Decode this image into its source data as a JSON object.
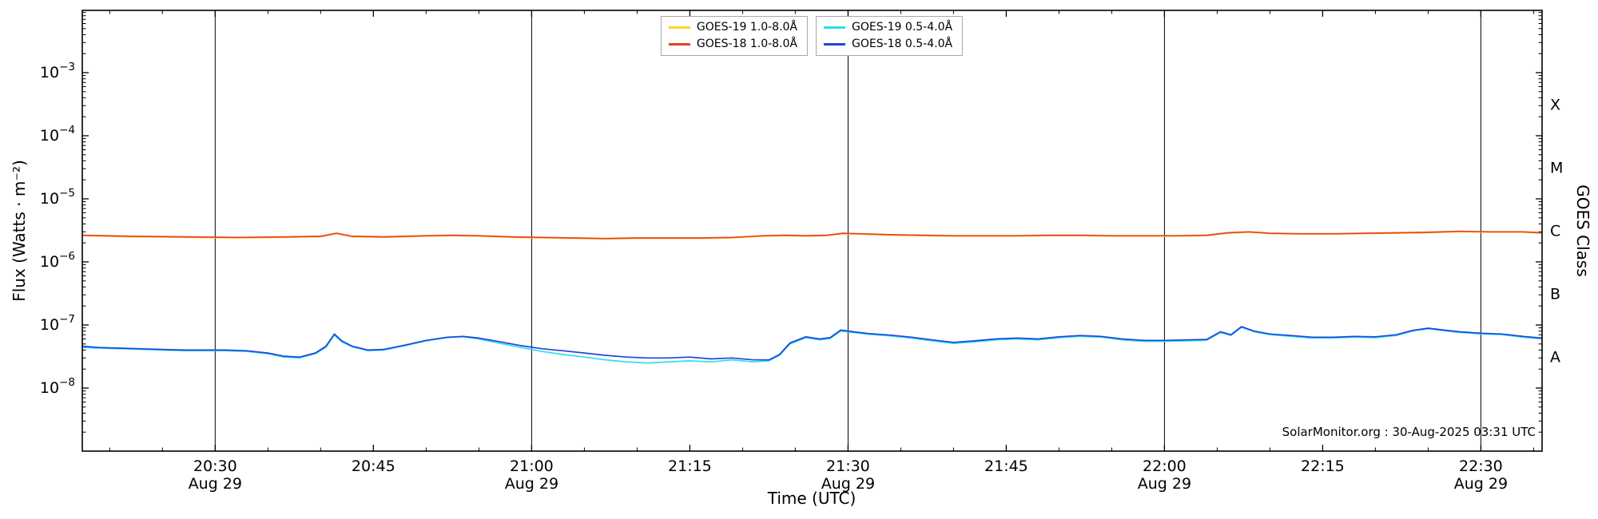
{
  "figure": {
    "xlabel": "Time (UTC)",
    "ylabel_left": "Flux (Watts · m⁻²)",
    "ylabel_right": "GOES Class",
    "watermark": "SolarMonitor.org : 30-Aug-2025 03:31 UTC"
  },
  "legend": {
    "entries": [
      {
        "label": "GOES-19 1.0-8.0Å",
        "color": "#ffd320"
      },
      {
        "label": "GOES-18 1.0-8.0Å",
        "color": "#e8402a"
      },
      {
        "label": "GOES-19 0.5-4.0Å",
        "color": "#29dff2"
      },
      {
        "label": "GOES-18 0.5-4.0Å",
        "color": "#2144dc"
      }
    ]
  },
  "chart_data": {
    "type": "line",
    "title": "",
    "xlabel": "Time (UTC)",
    "ylabel": "Flux (Watts · m⁻²)",
    "y2label": "GOES Class",
    "yscale": "log",
    "ylim": [
      1e-09,
      0.0094
    ],
    "ylog_min": -9,
    "x_units": "minutes after 20:00 UTC, 29-Aug-2025",
    "xlim": [
      17.4,
      155.8
    ],
    "x_minor_step": 5,
    "x_ticks": [
      {
        "t": 30,
        "label": "20:30",
        "sub": "Aug 29"
      },
      {
        "t": 45,
        "label": "20:45"
      },
      {
        "t": 60,
        "label": "21:00",
        "sub": "Aug 29"
      },
      {
        "t": 75,
        "label": "21:15"
      },
      {
        "t": 90,
        "label": "21:30",
        "sub": "Aug 29"
      },
      {
        "t": 105,
        "label": "21:45"
      },
      {
        "t": 120,
        "label": "22:00",
        "sub": "Aug 29"
      },
      {
        "t": 135,
        "label": "22:15"
      },
      {
        "t": 150,
        "label": "22:30",
        "sub": "Aug 29"
      }
    ],
    "day_lines": [
      30,
      60,
      90,
      120,
      150
    ],
    "y_ticks": [
      -3,
      -4,
      -5,
      -6,
      -7,
      -8
    ],
    "goes_classes": [
      {
        "label": "X",
        "log_center": -3.5
      },
      {
        "label": "M",
        "log_center": -4.5
      },
      {
        "label": "C",
        "log_center": -5.5
      },
      {
        "label": "B",
        "log_center": -6.5
      },
      {
        "label": "A",
        "log_center": -7.5
      }
    ],
    "series": [
      {
        "id": "goes19-1.0-8.0",
        "name": "GOES-19 1.0-8.0Å",
        "color": "#ffd320",
        "scale": 1e-06,
        "x": [
          17.4,
          22,
          27,
          32,
          37,
          40,
          41.5,
          43,
          46,
          50,
          52.5,
          55,
          58,
          61,
          64,
          67,
          70,
          73,
          76,
          79,
          82,
          84,
          86,
          88,
          89.5,
          91,
          94,
          97,
          100,
          103,
          106,
          109,
          112,
          115,
          118,
          121,
          124,
          126,
          128,
          130,
          133,
          136,
          139,
          142,
          145,
          148,
          151,
          154,
          155.8
        ],
        "values": [
          2.6,
          2.5,
          2.45,
          2.4,
          2.45,
          2.5,
          2.8,
          2.5,
          2.45,
          2.55,
          2.6,
          2.55,
          2.45,
          2.4,
          2.35,
          2.3,
          2.35,
          2.35,
          2.35,
          2.4,
          2.55,
          2.6,
          2.55,
          2.6,
          2.8,
          2.75,
          2.65,
          2.6,
          2.55,
          2.55,
          2.55,
          2.6,
          2.6,
          2.55,
          2.55,
          2.55,
          2.6,
          2.85,
          2.95,
          2.8,
          2.75,
          2.75,
          2.8,
          2.85,
          2.9,
          3.0,
          2.95,
          2.95,
          2.85
        ]
      },
      {
        "id": "goes18-1.0-8.0",
        "name": "GOES-18 1.0-8.0Å",
        "color": "#e8402a",
        "scale": 1e-06,
        "x": [
          17.4,
          22,
          27,
          32,
          37,
          40,
          41.5,
          43,
          46,
          50,
          52.5,
          55,
          58,
          61,
          64,
          67,
          70,
          73,
          76,
          79,
          82,
          84,
          86,
          88,
          89.5,
          91,
          94,
          97,
          100,
          103,
          106,
          109,
          112,
          115,
          118,
          121,
          124,
          126,
          128,
          130,
          133,
          136,
          139,
          142,
          145,
          148,
          151,
          154,
          155.8
        ],
        "values": [
          2.65,
          2.55,
          2.5,
          2.45,
          2.5,
          2.55,
          2.85,
          2.55,
          2.5,
          2.6,
          2.65,
          2.6,
          2.5,
          2.45,
          2.4,
          2.35,
          2.4,
          2.4,
          2.4,
          2.45,
          2.6,
          2.65,
          2.6,
          2.65,
          2.85,
          2.8,
          2.7,
          2.65,
          2.6,
          2.6,
          2.6,
          2.65,
          2.65,
          2.6,
          2.6,
          2.6,
          2.65,
          2.9,
          3.0,
          2.85,
          2.8,
          2.8,
          2.85,
          2.9,
          2.95,
          3.05,
          3.0,
          3.0,
          2.9
        ]
      },
      {
        "id": "goes19-0.5-4.0",
        "name": "GOES-19 0.5-4.0Å",
        "color": "#29dff2",
        "scale": 1e-08,
        "x": [
          17.4,
          19,
          21,
          23,
          25,
          27,
          29,
          31,
          33,
          35,
          36.5,
          38,
          39.5,
          40.5,
          41.3,
          42,
          43,
          44.5,
          46,
          48,
          50,
          52,
          53.5,
          55,
          57,
          59,
          61,
          63,
          65,
          67,
          69,
          71,
          73,
          75,
          77,
          79,
          81,
          82.5,
          83.5,
          84.5,
          86,
          87.3,
          88.3,
          89.3,
          90.5,
          92,
          94,
          96,
          98,
          100,
          102,
          104,
          106,
          108,
          110,
          112,
          114,
          116,
          118,
          120,
          122,
          124,
          125.3,
          126.3,
          127.3,
          128.5,
          130,
          132,
          134,
          136,
          138,
          140,
          142,
          143.5,
          145,
          146.5,
          148,
          150,
          152,
          154,
          155.8
        ],
        "values": [
          4.4,
          4.3,
          4.2,
          4.1,
          4.0,
          3.9,
          3.9,
          3.9,
          3.8,
          3.5,
          3.1,
          3.0,
          3.5,
          4.4,
          6.9,
          5.4,
          4.5,
          3.9,
          4.0,
          4.7,
          5.6,
          6.3,
          6.5,
          6.0,
          5.1,
          4.4,
          3.8,
          3.4,
          3.1,
          2.8,
          2.6,
          2.5,
          2.6,
          2.7,
          2.6,
          2.8,
          2.6,
          2.7,
          3.3,
          5.0,
          6.3,
          5.8,
          6.1,
          8.0,
          7.6,
          7.1,
          6.7,
          6.2,
          5.6,
          5.1,
          5.4,
          5.8,
          6.0,
          5.8,
          6.3,
          6.6,
          6.4,
          5.8,
          5.5,
          5.5,
          5.6,
          5.7,
          7.6,
          6.8,
          9.2,
          7.8,
          7.0,
          6.6,
          6.2,
          6.2,
          6.4,
          6.3,
          6.8,
          8.0,
          8.7,
          8.1,
          7.6,
          7.2,
          7.0,
          6.4,
          6.0
        ]
      },
      {
        "id": "goes18-0.5-4.0",
        "name": "GOES-18 0.5-4.0Å",
        "color": "#2144dc",
        "scale": 1e-08,
        "x": [
          17.4,
          19,
          21,
          23,
          25,
          27,
          29,
          31,
          33,
          35,
          36.5,
          38,
          39.5,
          40.5,
          41.3,
          42,
          43,
          44.5,
          46,
          48,
          50,
          52,
          53.5,
          55,
          57,
          59,
          61,
          63,
          65,
          67,
          69,
          71,
          73,
          75,
          77,
          79,
          81,
          82.5,
          83.5,
          84.5,
          86,
          87.3,
          88.3,
          89.3,
          90.5,
          92,
          94,
          96,
          98,
          100,
          102,
          104,
          106,
          108,
          110,
          112,
          114,
          116,
          118,
          120,
          122,
          124,
          125.3,
          126.3,
          127.3,
          128.5,
          130,
          132,
          134,
          136,
          138,
          140,
          142,
          143.5,
          145,
          146.5,
          148,
          150,
          152,
          154,
          155.8
        ],
        "values": [
          4.6,
          4.4,
          4.3,
          4.2,
          4.1,
          4.0,
          4.0,
          4.0,
          3.9,
          3.6,
          3.2,
          3.1,
          3.6,
          4.6,
          7.2,
          5.6,
          4.6,
          4.0,
          4.1,
          4.8,
          5.7,
          6.4,
          6.6,
          6.2,
          5.4,
          4.7,
          4.2,
          3.9,
          3.6,
          3.3,
          3.1,
          3.0,
          3.0,
          3.1,
          2.9,
          3.0,
          2.8,
          2.8,
          3.4,
          5.2,
          6.5,
          6.0,
          6.3,
          8.3,
          7.8,
          7.3,
          6.9,
          6.4,
          5.8,
          5.3,
          5.6,
          6.0,
          6.2,
          6.0,
          6.5,
          6.8,
          6.6,
          6.0,
          5.7,
          5.7,
          5.8,
          5.9,
          7.8,
          7.0,
          9.4,
          8.0,
          7.2,
          6.8,
          6.4,
          6.4,
          6.6,
          6.5,
          7.0,
          8.2,
          8.9,
          8.3,
          7.8,
          7.4,
          7.2,
          6.6,
          6.2
        ]
      }
    ]
  }
}
